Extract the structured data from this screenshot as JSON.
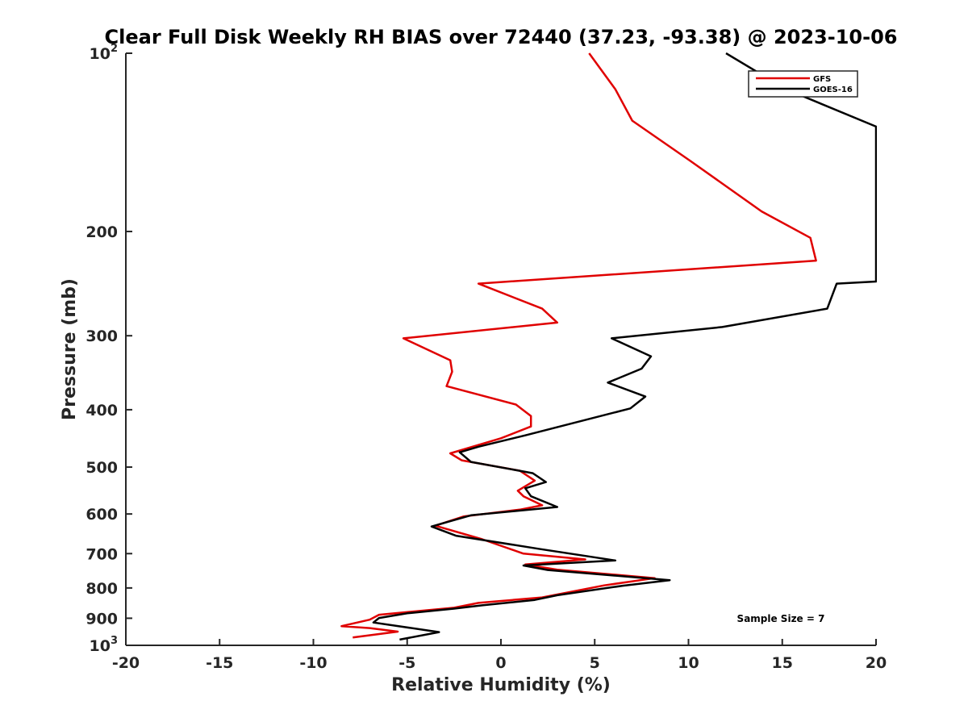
{
  "chart_data": {
    "type": "line",
    "title": "Clear Full Disk Weekly RH BIAS over 72440 (37.23, -93.38) @ 2023-10-06",
    "xlabel": "Relative Humidity (%)",
    "ylabel": "Pressure (mb)",
    "xlim": [
      -20,
      20
    ],
    "ylim": [
      100,
      1000
    ],
    "y_scale": "log",
    "y_reversed": true,
    "grid": false,
    "legend_position": "top-right",
    "x_ticks": [
      -20,
      -15,
      -10,
      -5,
      0,
      5,
      10,
      15,
      20
    ],
    "x_tick_labels": [
      "-20",
      "-15",
      "-10",
      "-5",
      "0",
      "5",
      "10",
      "15",
      "20"
    ],
    "y_ticks": [
      {
        "value": 100,
        "base": "10",
        "exp": "2"
      },
      {
        "value": 200,
        "base": "200",
        "exp": ""
      },
      {
        "value": 300,
        "base": "300",
        "exp": ""
      },
      {
        "value": 400,
        "base": "400",
        "exp": ""
      },
      {
        "value": 500,
        "base": "500",
        "exp": ""
      },
      {
        "value": 600,
        "base": "600",
        "exp": ""
      },
      {
        "value": 700,
        "base": "700",
        "exp": ""
      },
      {
        "value": 800,
        "base": "800",
        "exp": ""
      },
      {
        "value": 900,
        "base": "900",
        "exp": ""
      },
      {
        "value": 1000,
        "base": "10",
        "exp": "3"
      }
    ],
    "annotation": "Sample Size = 7",
    "series": [
      {
        "name": "GFS",
        "color": "#e00000",
        "points": [
          [
            4.7,
            100
          ],
          [
            6.1,
            115
          ],
          [
            7.0,
            130
          ],
          [
            10.1,
            152
          ],
          [
            13.9,
            185
          ],
          [
            16.5,
            205
          ],
          [
            16.8,
            224
          ],
          [
            -1.2,
            245
          ],
          [
            2.2,
            270
          ],
          [
            3.0,
            285
          ],
          [
            -5.2,
            303
          ],
          [
            -2.7,
            330
          ],
          [
            -2.6,
            345
          ],
          [
            -2.9,
            365
          ],
          [
            0.8,
            392
          ],
          [
            1.6,
            410
          ],
          [
            1.6,
            427
          ],
          [
            0.0,
            447
          ],
          [
            -2.7,
            474
          ],
          [
            -2.1,
            487
          ],
          [
            1.0,
            507
          ],
          [
            1.8,
            527
          ],
          [
            0.9,
            548
          ],
          [
            1.2,
            560
          ],
          [
            2.2,
            580
          ],
          [
            1.0,
            590
          ],
          [
            -2.0,
            606
          ],
          [
            -3.5,
            628
          ],
          [
            -1.0,
            662
          ],
          [
            1.2,
            700
          ],
          [
            4.5,
            716
          ],
          [
            1.3,
            730
          ],
          [
            3.0,
            745
          ],
          [
            8.2,
            770
          ],
          [
            5.5,
            792
          ],
          [
            2.2,
            830
          ],
          [
            -1.2,
            848
          ],
          [
            -2.5,
            864
          ],
          [
            -6.5,
            888
          ],
          [
            -7.0,
            905
          ],
          [
            -8.5,
            928
          ],
          [
            -7.0,
            935
          ],
          [
            -5.5,
            948
          ],
          [
            -7.9,
            970
          ]
        ]
      },
      {
        "name": "GOES-16",
        "color": "#000000",
        "points": [
          [
            12.0,
            100
          ],
          [
            15.2,
            115
          ],
          [
            20.0,
            133
          ],
          [
            20.0,
            243
          ],
          [
            17.9,
            245
          ],
          [
            17.4,
            270
          ],
          [
            11.8,
            290
          ],
          [
            5.9,
            303
          ],
          [
            8.0,
            325
          ],
          [
            7.5,
            341
          ],
          [
            5.7,
            360
          ],
          [
            7.7,
            380
          ],
          [
            6.9,
            398
          ],
          [
            1.3,
            442
          ],
          [
            -1.2,
            462
          ],
          [
            -2.2,
            472
          ],
          [
            -1.6,
            490
          ],
          [
            1.7,
            512
          ],
          [
            2.4,
            530
          ],
          [
            1.3,
            543
          ],
          [
            1.6,
            560
          ],
          [
            3.0,
            584
          ],
          [
            -1.6,
            603
          ],
          [
            -3.7,
            630
          ],
          [
            -2.4,
            653
          ],
          [
            2.0,
            687
          ],
          [
            6.1,
            719
          ],
          [
            1.2,
            733
          ],
          [
            2.5,
            746
          ],
          [
            9.0,
            776
          ],
          [
            6.5,
            793
          ],
          [
            3.0,
            823
          ],
          [
            1.8,
            838
          ],
          [
            -1.0,
            856
          ],
          [
            -2.5,
            867
          ],
          [
            -5.0,
            883
          ],
          [
            -6.5,
            899
          ],
          [
            -6.8,
            915
          ],
          [
            -3.3,
            950
          ],
          [
            -5.4,
            978
          ]
        ]
      }
    ]
  }
}
